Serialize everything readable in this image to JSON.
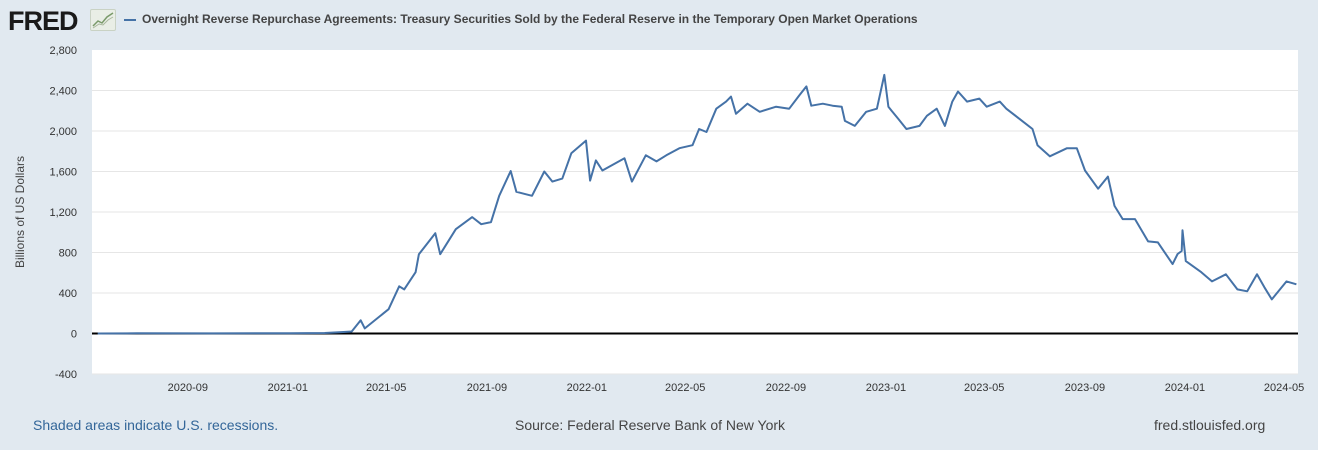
{
  "header": {
    "logo_text": "FRED",
    "title": "Overnight Reverse Repurchase Agreements: Treasury Securities Sold by the Federal Reserve in the Temporary Open Market Operations"
  },
  "footer": {
    "recessions_note": "Shaded areas indicate U.S. recessions.",
    "source": "Source: Federal Reserve Bank of New York",
    "site": "fred.stlouisfed.org"
  },
  "colors": {
    "line": "#4572a7",
    "background": "#e1e9f0",
    "plot": "#ffffff",
    "grid": "#e6e6e6",
    "zero_line": "#000000"
  },
  "chart_data": {
    "type": "line",
    "title": "Overnight Reverse Repurchase Agreements: Treasury Securities Sold by the Federal Reserve in the Temporary Open Market Operations",
    "xlabel": "",
    "ylabel": "Billions of US Dollars",
    "ylim": [
      -400,
      2800
    ],
    "xlim": [
      "2020-05-07",
      "2024-05-18"
    ],
    "grid": true,
    "legend": "top-left",
    "y_ticks": [
      -400,
      0,
      400,
      800,
      1200,
      1600,
      2000,
      2400,
      2800
    ],
    "y_tick_labels": [
      "-400",
      "0",
      "400",
      "800",
      "1,200",
      "1,600",
      "2,000",
      "2,400",
      "2,800"
    ],
    "x_ticks": [
      "2020-09-01",
      "2021-01-01",
      "2021-05-01",
      "2021-09-01",
      "2022-01-01",
      "2022-05-01",
      "2022-09-01",
      "2023-01-01",
      "2023-05-01",
      "2023-09-01",
      "2024-01-01",
      "2024-05-01"
    ],
    "x_tick_labels": [
      "2020-09",
      "2021-01",
      "2021-05",
      "2021-09",
      "2022-01",
      "2022-05",
      "2022-09",
      "2023-01",
      "2023-05",
      "2023-09",
      "2024-01",
      "2024-05"
    ],
    "series": [
      {
        "name": "Overnight Reverse Repurchase Agreements: Treasury Securities Sold",
        "x": [
          "2020-05-14",
          "2020-07-01",
          "2020-10-01",
          "2021-01-04",
          "2021-02-15",
          "2021-03-10",
          "2021-03-20",
          "2021-03-31",
          "2021-04-05",
          "2021-05-04",
          "2021-05-17",
          "2021-05-23",
          "2021-06-06",
          "2021-06-10",
          "2021-06-30",
          "2021-07-06",
          "2021-07-25",
          "2021-08-14",
          "2021-08-25",
          "2021-09-06",
          "2021-09-16",
          "2021-09-30",
          "2021-10-07",
          "2021-10-26",
          "2021-11-10",
          "2021-11-20",
          "2021-12-02",
          "2021-12-13",
          "2021-12-31",
          "2022-01-05",
          "2022-01-12",
          "2022-01-20",
          "2022-02-16",
          "2022-02-25",
          "2022-03-14",
          "2022-03-27",
          "2022-04-08",
          "2022-04-24",
          "2022-05-10",
          "2022-05-18",
          "2022-05-27",
          "2022-06-08",
          "2022-06-20",
          "2022-06-26",
          "2022-07-02",
          "2022-07-16",
          "2022-07-31",
          "2022-08-20",
          "2022-09-05",
          "2022-09-17",
          "2022-09-26",
          "2022-10-02",
          "2022-10-16",
          "2022-10-28",
          "2022-11-08",
          "2022-11-12",
          "2022-11-24",
          "2022-12-08",
          "2022-12-21",
          "2022-12-30",
          "2023-01-04",
          "2023-01-08",
          "2023-01-16",
          "2023-01-26",
          "2023-02-11",
          "2023-02-20",
          "2023-03-04",
          "2023-03-14",
          "2023-03-23",
          "2023-03-30",
          "2023-04-10",
          "2023-04-25",
          "2023-05-04",
          "2023-05-20",
          "2023-05-28",
          "2023-06-13",
          "2023-06-29",
          "2023-07-05",
          "2023-07-20",
          "2023-08-10",
          "2023-08-22",
          "2023-09-01",
          "2023-09-17",
          "2023-09-29",
          "2023-10-07",
          "2023-10-17",
          "2023-11-01",
          "2023-11-17",
          "2023-11-29",
          "2023-12-17",
          "2023-12-23",
          "2023-12-28",
          "2023-12-29",
          "2024-01-02",
          "2024-01-21",
          "2024-02-03",
          "2024-02-20",
          "2024-03-05",
          "2024-03-17",
          "2024-03-29",
          "2024-04-07",
          "2024-04-16",
          "2024-05-04",
          "2024-05-16"
        ],
        "values": [
          0,
          2,
          1,
          3,
          5,
          15,
          20,
          130,
          50,
          240,
          466,
          436,
          605,
          783,
          991,
          783,
          1030,
          1150,
          1080,
          1100,
          1360,
          1605,
          1400,
          1360,
          1600,
          1500,
          1530,
          1780,
          1905,
          1510,
          1710,
          1610,
          1730,
          1500,
          1760,
          1700,
          1760,
          1830,
          1860,
          2020,
          1990,
          2220,
          2290,
          2340,
          2170,
          2270,
          2190,
          2240,
          2220,
          2350,
          2440,
          2250,
          2270,
          2250,
          2240,
          2100,
          2050,
          2190,
          2220,
          2554,
          2240,
          2200,
          2120,
          2020,
          2050,
          2150,
          2220,
          2050,
          2290,
          2390,
          2290,
          2320,
          2240,
          2290,
          2220,
          2120,
          2020,
          1860,
          1750,
          1830,
          1830,
          1610,
          1430,
          1550,
          1260,
          1130,
          1130,
          910,
          900,
          685,
          785,
          815,
          1019,
          715,
          605,
          515,
          585,
          436,
          417,
          585,
          456,
          337,
          515,
          486
        ]
      }
    ]
  }
}
